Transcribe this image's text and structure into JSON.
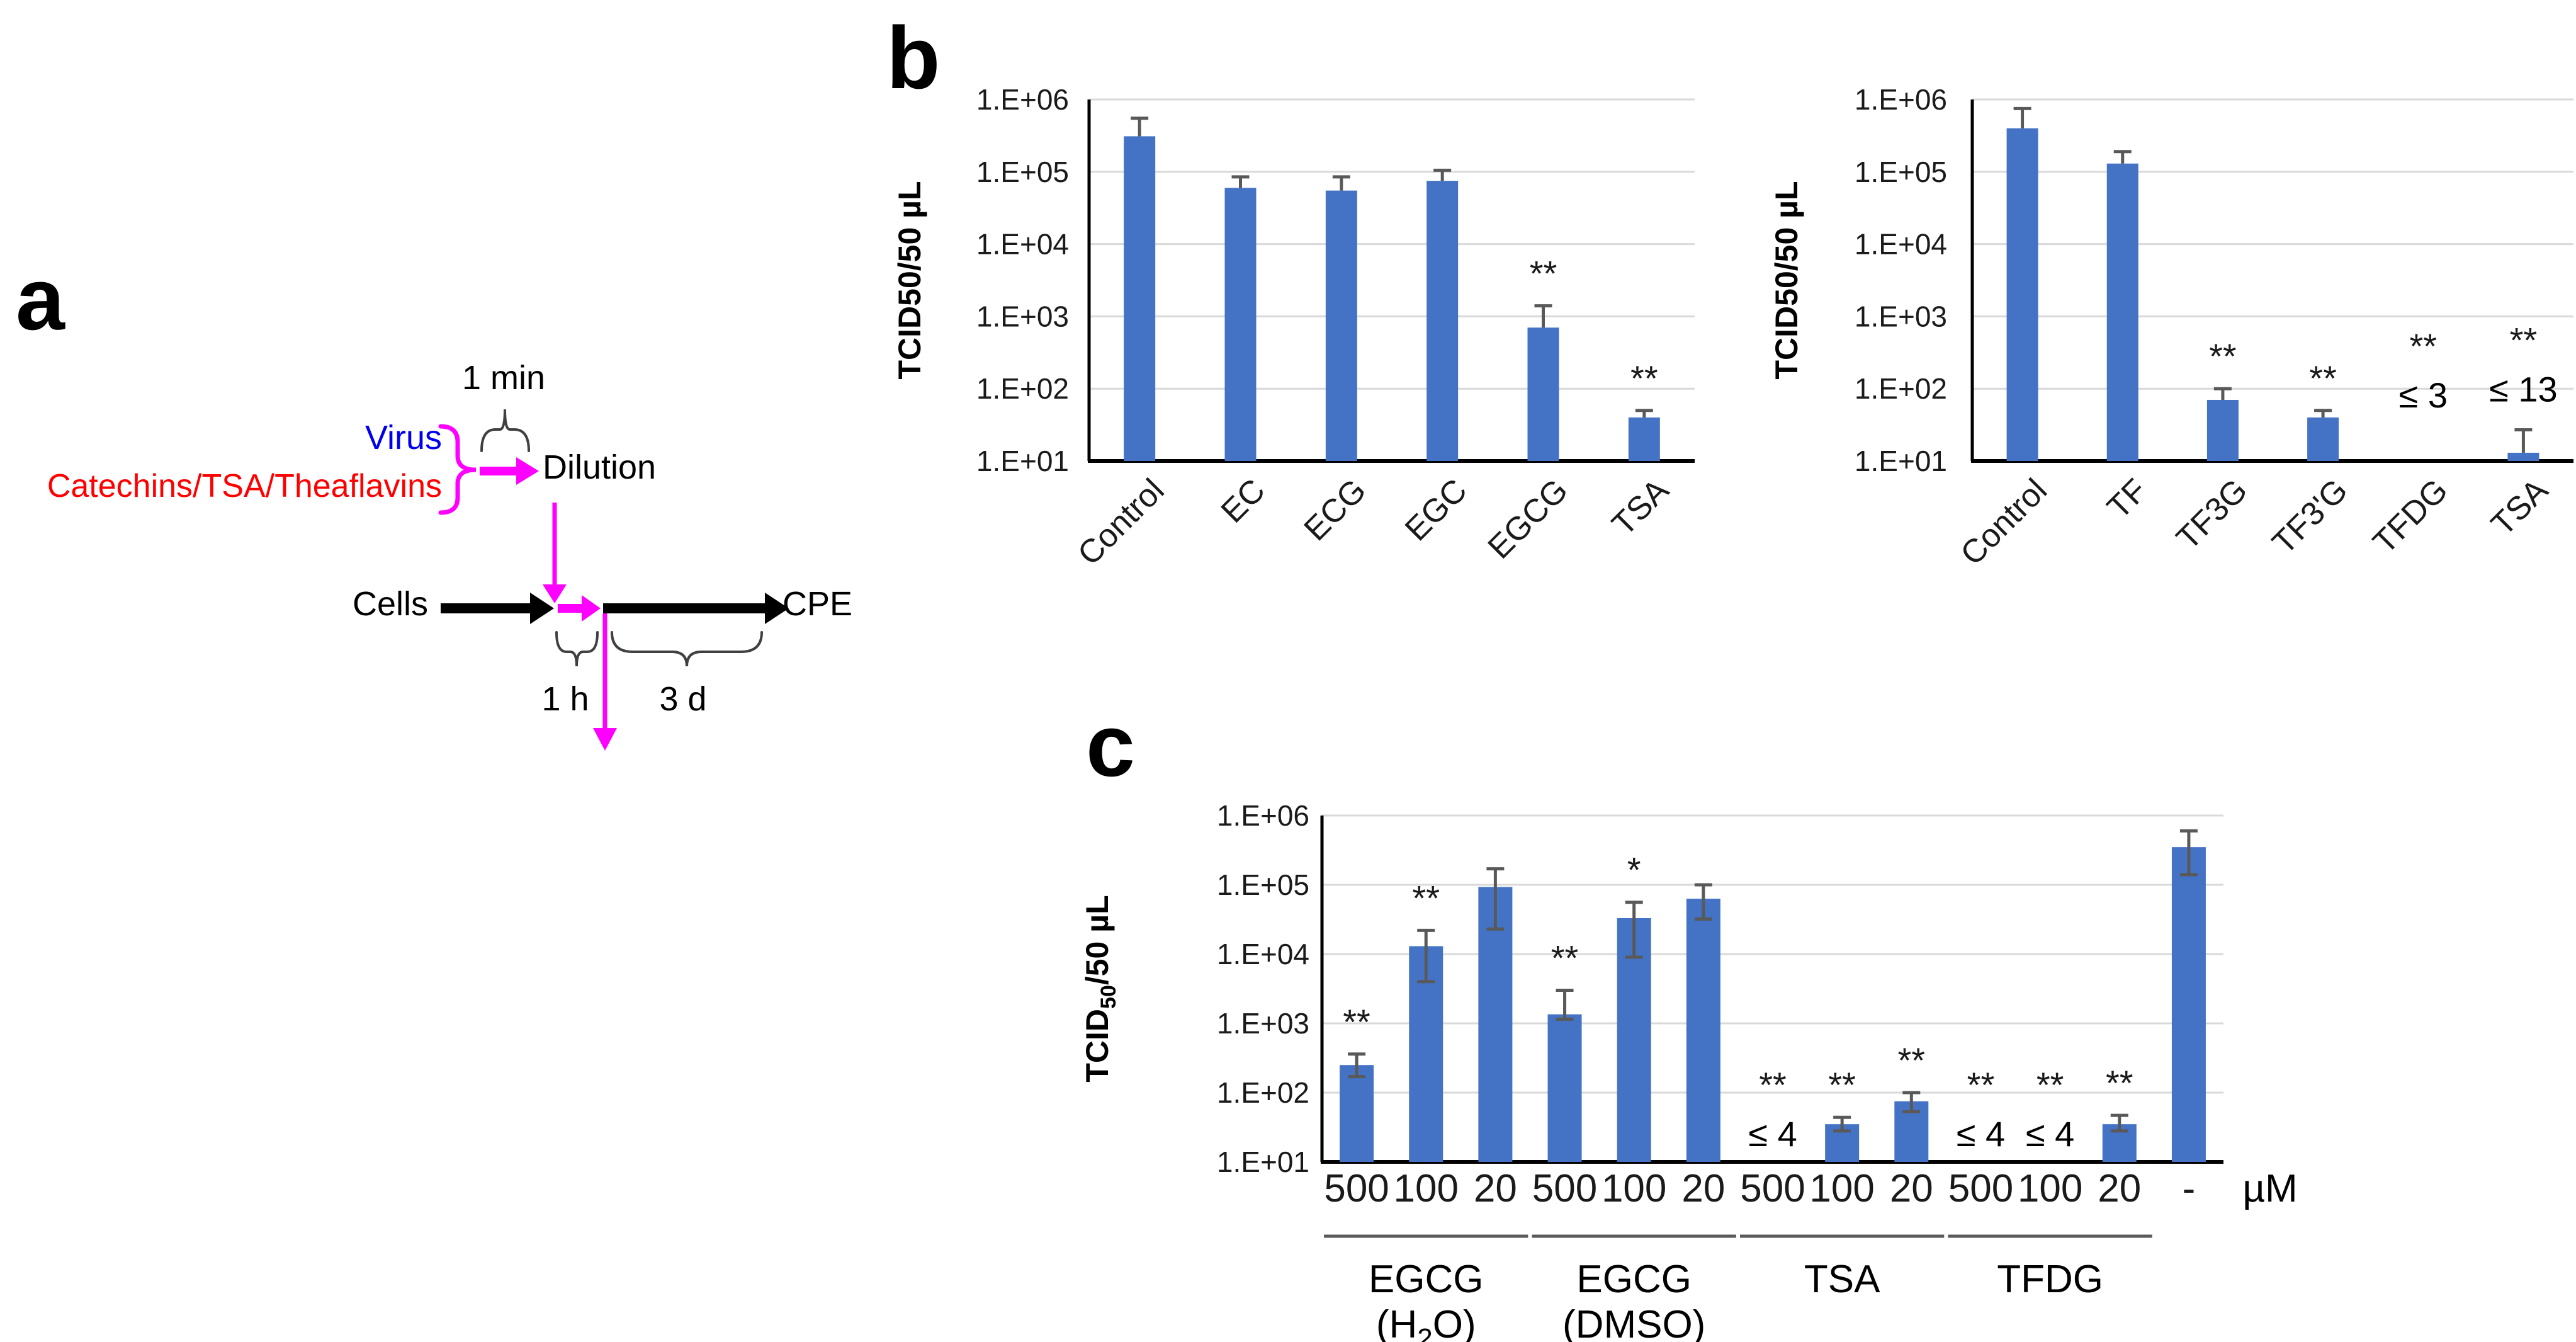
{
  "panels": {
    "a": "a",
    "b": "b",
    "c": "c"
  },
  "panel_a": {
    "time_mix_label": "1 min",
    "virus_label": "Virus",
    "compounds_label": "Catechins/TSA/Theaflavins",
    "dilution_label": "Dilution",
    "cells_label": "Cells",
    "cpe_label": "CPE",
    "adsorption_time_label": "1 h",
    "incubation_time_label": "3 d",
    "colors": {
      "virus": "#0000ee",
      "compounds": "#ff0000",
      "highlight": "#ff00ff",
      "flow": "#000000"
    }
  },
  "chart_data": [
    {
      "id": "b_left",
      "type": "bar",
      "panel": "b",
      "title": "",
      "ylabel": {
        "pre": "TCID50/50 µL",
        "sub": "",
        "post": ""
      },
      "yticks": [
        "1.E+06",
        "1.E+05",
        "1.E+04",
        "1.E+03",
        "1.E+02",
        "1.E+01"
      ],
      "ylim": [
        10,
        1000000
      ],
      "yscale": "log",
      "grid": true,
      "categories": [
        "Control",
        "EC",
        "ECG",
        "EGC",
        "EGCG",
        "TSA"
      ],
      "values": [
        310000,
        60000,
        55000,
        75000,
        700,
        40
      ],
      "err_high": [
        550000,
        85000,
        85000,
        105000,
        1400,
        50
      ],
      "err_low": [
        null,
        null,
        null,
        null,
        null,
        null
      ],
      "sig": [
        "",
        "",
        "",
        "",
        "**",
        "**"
      ],
      "notes": [
        "",
        "",
        "",
        "",
        "",
        ""
      ],
      "bar_color": "#4473c5",
      "error_color": "#595959"
    },
    {
      "id": "b_right",
      "type": "bar",
      "panel": "b",
      "title": "",
      "ylabel": {
        "pre": "TCID50/50 µL",
        "sub": "",
        "post": ""
      },
      "yticks": [
        "1.E+06",
        "1.E+05",
        "1.E+04",
        "1.E+03",
        "1.E+02",
        "1.E+01"
      ],
      "ylim": [
        10,
        1000000
      ],
      "yscale": "log",
      "grid": true,
      "categories": [
        "Control",
        "TF",
        "TF3G",
        "TF3'G",
        "TFDG",
        "TSA"
      ],
      "values": [
        400000,
        130000,
        70,
        40,
        null,
        13
      ],
      "err_high": [
        750000,
        190000,
        100,
        50,
        null,
        27
      ],
      "err_low": [
        null,
        null,
        null,
        null,
        null,
        null
      ],
      "sig": [
        "",
        "",
        "**",
        "**",
        "**",
        "**"
      ],
      "notes": [
        "",
        "",
        "",
        "",
        "≤ 3",
        "≤ 13"
      ],
      "bar_color": "#4473c5",
      "error_color": "#595959"
    },
    {
      "id": "c",
      "type": "bar",
      "panel": "c",
      "title": "",
      "ylabel": {
        "pre": "TCID",
        "sub": "50",
        "post": "/50 µL"
      },
      "yticks": [
        "1.E+06",
        "1.E+05",
        "1.E+04",
        "1.E+03",
        "1.E+02",
        "1.E+01"
      ],
      "ylim": [
        10,
        1000000
      ],
      "yscale": "log",
      "grid": true,
      "categories": [
        "500",
        "100",
        "20",
        "500",
        "100",
        "20",
        "500",
        "100",
        "20",
        "500",
        "100",
        "20",
        "-"
      ],
      "values": [
        250,
        13000,
        93000,
        1350,
        33000,
        63000,
        null,
        35,
        75,
        null,
        null,
        35,
        350000
      ],
      "err_high": [
        360,
        22000,
        170000,
        3000,
        56000,
        100000,
        null,
        44,
        100,
        null,
        null,
        47,
        600000
      ],
      "err_low": [
        170,
        4000,
        23000,
        1150,
        9000,
        32000,
        null,
        28,
        53,
        null,
        null,
        28,
        140000
      ],
      "sig": [
        "**",
        "**",
        "",
        "**",
        "*",
        "",
        "**",
        "**",
        "**",
        "**",
        "**",
        "**",
        ""
      ],
      "notes": [
        "",
        "",
        "",
        "",
        "",
        "",
        "≤ 4",
        "",
        "",
        "≤ 4",
        "≤ 4",
        "",
        ""
      ],
      "unit_label": "µM",
      "groups": [
        {
          "name": "EGCG",
          "solvent": {
            "pre": "(H",
            "sub": "2",
            "post": "O)"
          },
          "span": [
            0,
            2
          ]
        },
        {
          "name": "EGCG",
          "solvent": {
            "pre": "(DMSO)",
            "sub": "",
            "post": ""
          },
          "span": [
            3,
            5
          ]
        },
        {
          "name": "TSA",
          "solvent": null,
          "span": [
            6,
            8
          ]
        },
        {
          "name": "TFDG",
          "solvent": null,
          "span": [
            9,
            11
          ]
        }
      ],
      "bar_color": "#4473c5",
      "error_color": "#595959"
    }
  ]
}
